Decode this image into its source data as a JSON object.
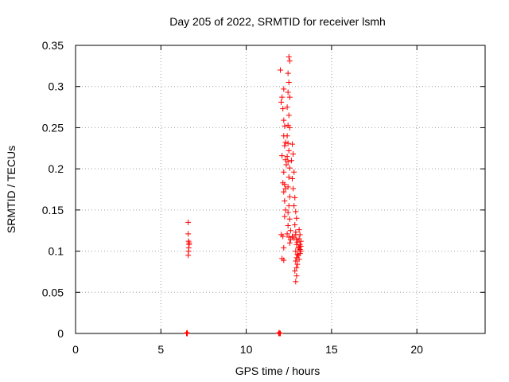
{
  "chart_data": {
    "type": "scatter",
    "title": "Day 205 of 2022, SRMTID for receiver lsmh",
    "xlabel": "GPS time / hours",
    "ylabel": "SRMTID / TECUs",
    "xlim": [
      0,
      24
    ],
    "ylim": [
      0,
      0.35
    ],
    "xticks": [
      0,
      5,
      10,
      15,
      20
    ],
    "xtick_labels": [
      "0",
      "5",
      "10",
      "15",
      "20"
    ],
    "yticks": [
      0,
      0.05,
      0.1,
      0.15,
      0.2,
      0.25,
      0.3,
      0.35
    ],
    "ytick_labels": [
      "0",
      "0.05",
      "0.1",
      "0.15",
      "0.2",
      "0.25",
      "0.3",
      "0.35"
    ],
    "grid": true,
    "marker": "+",
    "color": "#ff0000",
    "series": [
      {
        "name": "SRMTID",
        "points": [
          [
            6.5,
            0.0
          ],
          [
            6.52,
            0.0
          ],
          [
            6.55,
            0.0
          ],
          [
            6.53,
            0.001
          ],
          [
            6.6,
            0.135
          ],
          [
            6.6,
            0.121
          ],
          [
            6.62,
            0.112
          ],
          [
            6.65,
            0.108
          ],
          [
            6.63,
            0.104
          ],
          [
            6.62,
            0.1
          ],
          [
            6.6,
            0.095
          ],
          [
            6.66,
            0.11
          ],
          [
            11.9,
            0.0
          ],
          [
            11.95,
            0.0
          ],
          [
            12.0,
            0.0
          ],
          [
            11.93,
            0.001
          ],
          [
            12.0,
            0.32
          ],
          [
            12.1,
            0.287
          ],
          [
            12.05,
            0.281
          ],
          [
            12.2,
            0.297
          ],
          [
            12.15,
            0.273
          ],
          [
            12.2,
            0.259
          ],
          [
            12.25,
            0.252
          ],
          [
            12.2,
            0.24
          ],
          [
            12.3,
            0.232
          ],
          [
            12.25,
            0.228
          ],
          [
            12.1,
            0.216
          ],
          [
            12.3,
            0.211
          ],
          [
            12.35,
            0.205
          ],
          [
            12.2,
            0.196
          ],
          [
            12.15,
            0.183
          ],
          [
            12.25,
            0.181
          ],
          [
            12.3,
            0.176
          ],
          [
            12.2,
            0.172
          ],
          [
            12.25,
            0.161
          ],
          [
            12.3,
            0.15
          ],
          [
            12.25,
            0.142
          ],
          [
            12.05,
            0.12
          ],
          [
            12.15,
            0.118
          ],
          [
            12.2,
            0.104
          ],
          [
            12.1,
            0.091
          ],
          [
            12.2,
            0.089
          ],
          [
            12.5,
            0.336
          ],
          [
            12.55,
            0.331
          ],
          [
            12.45,
            0.316
          ],
          [
            12.5,
            0.305
          ],
          [
            12.45,
            0.293
          ],
          [
            12.55,
            0.287
          ],
          [
            12.4,
            0.275
          ],
          [
            12.5,
            0.265
          ],
          [
            12.45,
            0.253
          ],
          [
            12.55,
            0.25
          ],
          [
            12.4,
            0.24
          ],
          [
            12.45,
            0.231
          ],
          [
            12.5,
            0.222
          ],
          [
            12.4,
            0.215
          ],
          [
            12.45,
            0.209
          ],
          [
            12.55,
            0.201
          ],
          [
            12.5,
            0.19
          ],
          [
            12.45,
            0.178
          ],
          [
            12.55,
            0.166
          ],
          [
            12.5,
            0.155
          ],
          [
            12.45,
            0.147
          ],
          [
            12.55,
            0.139
          ],
          [
            12.45,
            0.131
          ],
          [
            12.6,
            0.125
          ],
          [
            12.4,
            0.121
          ],
          [
            12.5,
            0.117
          ],
          [
            12.6,
            0.114
          ],
          [
            12.55,
            0.11
          ],
          [
            12.7,
            0.23
          ],
          [
            12.75,
            0.218
          ],
          [
            12.65,
            0.21
          ],
          [
            12.8,
            0.196
          ],
          [
            12.7,
            0.188
          ],
          [
            12.75,
            0.176
          ],
          [
            12.85,
            0.165
          ],
          [
            12.8,
            0.155
          ],
          [
            12.9,
            0.148
          ],
          [
            12.95,
            0.14
          ],
          [
            12.85,
            0.132
          ],
          [
            12.9,
            0.123
          ],
          [
            12.7,
            0.118
          ],
          [
            12.8,
            0.116
          ],
          [
            12.9,
            0.12
          ],
          [
            12.95,
            0.114
          ],
          [
            13.0,
            0.111
          ],
          [
            12.95,
            0.108
          ],
          [
            13.05,
            0.104
          ],
          [
            12.9,
            0.1
          ],
          [
            13.0,
            0.096
          ],
          [
            12.95,
            0.092
          ],
          [
            12.9,
            0.088
          ],
          [
            13.0,
            0.084
          ],
          [
            12.95,
            0.08
          ],
          [
            12.85,
            0.076
          ],
          [
            12.95,
            0.07
          ],
          [
            12.9,
            0.063
          ],
          [
            13.1,
            0.126
          ],
          [
            13.15,
            0.12
          ],
          [
            13.1,
            0.115
          ],
          [
            13.2,
            0.112
          ],
          [
            13.15,
            0.108
          ],
          [
            13.1,
            0.104
          ],
          [
            13.2,
            0.1
          ],
          [
            13.15,
            0.097
          ],
          [
            13.05,
            0.095
          ],
          [
            13.1,
            0.09
          ],
          [
            13.2,
            0.106
          ],
          [
            13.15,
            0.102
          ]
        ]
      }
    ]
  }
}
